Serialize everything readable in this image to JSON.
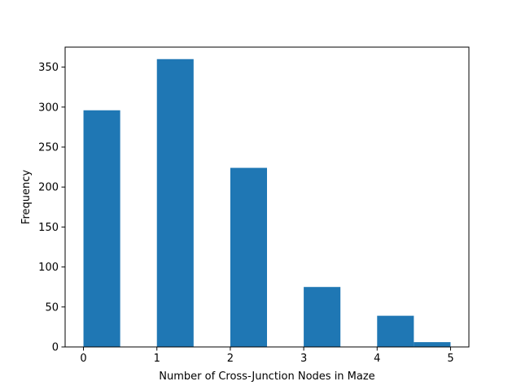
{
  "chart_data": {
    "type": "bar",
    "title": "",
    "xlabel": "Number of Cross-Junction Nodes in Maze",
    "ylabel": "Frequency",
    "xlim": [
      -0.25,
      5.25
    ],
    "ylim": [
      0,
      375
    ],
    "grid": false,
    "legend": "none",
    "bar_color": "#1f77b4",
    "bins": [
      {
        "x0": 0.0,
        "x1": 0.5,
        "value": 296
      },
      {
        "x0": 0.5,
        "x1": 1.0,
        "value": 0
      },
      {
        "x0": 1.0,
        "x1": 1.5,
        "value": 360
      },
      {
        "x0": 1.5,
        "x1": 2.0,
        "value": 0
      },
      {
        "x0": 2.0,
        "x1": 2.5,
        "value": 224
      },
      {
        "x0": 2.5,
        "x1": 3.0,
        "value": 0
      },
      {
        "x0": 3.0,
        "x1": 3.5,
        "value": 75
      },
      {
        "x0": 3.5,
        "x1": 4.0,
        "value": 0
      },
      {
        "x0": 4.0,
        "x1": 4.5,
        "value": 39
      },
      {
        "x0": 4.5,
        "x1": 5.0,
        "value": 6
      }
    ],
    "xticks": [
      {
        "value": 0,
        "label": "0"
      },
      {
        "value": 1,
        "label": "1"
      },
      {
        "value": 2,
        "label": "2"
      },
      {
        "value": 3,
        "label": "3"
      },
      {
        "value": 4,
        "label": "4"
      },
      {
        "value": 5,
        "label": "5"
      }
    ],
    "yticks": [
      {
        "value": 0,
        "label": "0"
      },
      {
        "value": 50,
        "label": "50"
      },
      {
        "value": 100,
        "label": "100"
      },
      {
        "value": 150,
        "label": "150"
      },
      {
        "value": 200,
        "label": "200"
      },
      {
        "value": 250,
        "label": "250"
      },
      {
        "value": 300,
        "label": "300"
      },
      {
        "value": 350,
        "label": "350"
      }
    ]
  }
}
